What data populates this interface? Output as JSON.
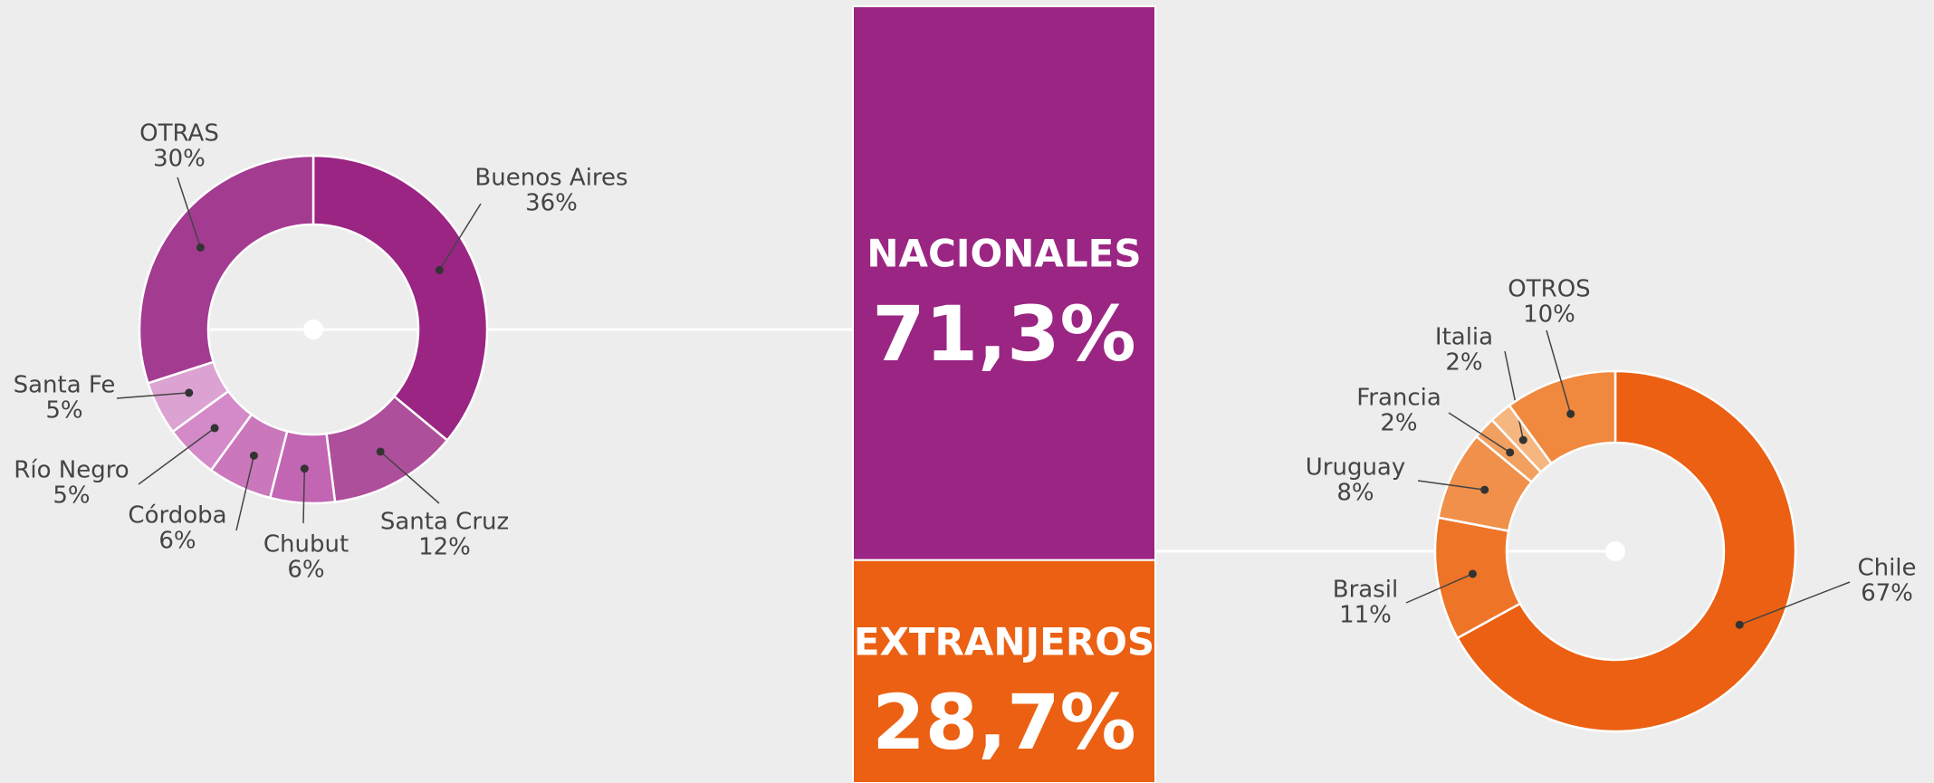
{
  "chart_data": [
    {
      "type": "donut",
      "categories": [
        "Buenos Aires",
        "Santa Cruz",
        "Chubut",
        "Córdoba",
        "Río Negro",
        "Santa Fe",
        "OTRAS"
      ],
      "values": [
        36,
        12,
        6,
        6,
        5,
        5,
        30
      ],
      "value_labels": [
        "36%",
        "12%",
        "6%",
        "6%",
        "5%",
        "5%",
        "30%"
      ],
      "colors": [
        "#9a2583",
        "#ae4f9b",
        "#c265b2",
        "#ca77bc",
        "#d48ac8",
        "#dca3d2",
        "#a33b91"
      ]
    },
    {
      "type": "stacked_bar",
      "series": [
        {
          "name": "NACIONALES",
          "color": "#9a2583",
          "values": [
            71.3
          ],
          "value_labels": [
            "71,3%"
          ]
        },
        {
          "name": "EXTRANJEROS",
          "color": "#eb6012",
          "values": [
            28.7
          ],
          "value_labels": [
            "28,7%"
          ]
        }
      ]
    },
    {
      "type": "donut",
      "categories": [
        "Chile",
        "Brasil",
        "Uruguay",
        "Francia",
        "Italia",
        "OTROS"
      ],
      "values": [
        67,
        11,
        8,
        2,
        2,
        10
      ],
      "value_labels": [
        "67%",
        "11%",
        "8%",
        "2%",
        "2%",
        "10%"
      ],
      "colors": [
        "#eb6012",
        "#ee7428",
        "#f0904a",
        "#f2a060",
        "#f5b680",
        "#f0883e"
      ]
    }
  ]
}
